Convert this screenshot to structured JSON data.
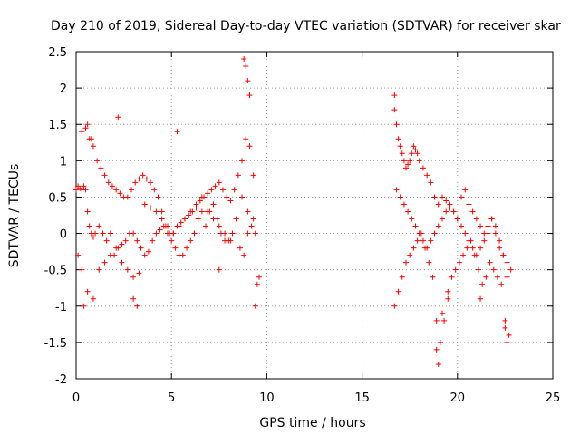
{
  "chart_data": {
    "type": "scatter",
    "title": "Day 210 of 2019, Sidereal Day-to-day VTEC variation (SDTVAR) for receiver skar",
    "xlabel": "GPS time / hours",
    "ylabel": "SDTVAR / TECUs",
    "xlim": [
      0,
      25
    ],
    "ylim": [
      -2,
      2.5
    ],
    "xticks": [
      0,
      5,
      10,
      15,
      20,
      25
    ],
    "xtick_labels": [
      "0",
      "5",
      "10",
      "15",
      "20",
      "25"
    ],
    "yticks": [
      -2,
      -1.5,
      -1,
      -0.5,
      0,
      0.5,
      1,
      1.5,
      2,
      2.5
    ],
    "ytick_labels": [
      "-2",
      "-1.5",
      "-1",
      "-0.5",
      "0",
      "0.5",
      "1",
      "1.5",
      "2",
      "2.5"
    ],
    "grid": true,
    "marker": "+",
    "color": "#ff0000",
    "series": [
      {
        "name": "SDTVAR",
        "x": [
          0.0,
          0.1,
          0.2,
          0.3,
          0.4,
          0.5,
          0.6,
          0.7,
          0.8,
          0.9,
          1.0,
          1.2,
          1.4,
          1.6,
          1.8,
          2.0,
          2.2,
          2.4,
          2.6,
          2.8,
          3.0,
          3.2,
          3.4,
          3.6,
          3.8,
          4.0,
          4.2,
          4.4,
          4.6,
          4.8,
          5.0,
          5.2,
          5.4,
          5.6,
          5.8,
          6.0,
          6.2,
          6.4,
          6.6,
          6.8,
          7.0,
          7.2,
          7.4,
          7.6,
          7.8,
          8.0,
          8.2,
          8.4,
          8.6,
          8.8,
          9.0,
          9.2,
          9.4,
          9.6,
          0.3,
          0.5,
          0.7,
          0.9,
          1.1,
          1.3,
          1.5,
          1.7,
          1.9,
          2.1,
          2.3,
          2.5,
          2.7,
          2.9,
          3.1,
          3.3,
          3.5,
          3.7,
          3.9,
          4.1,
          4.3,
          4.5,
          4.7,
          4.9,
          5.1,
          5.3,
          5.5,
          5.7,
          5.9,
          6.1,
          6.3,
          6.5,
          6.7,
          6.9,
          7.1,
          7.3,
          7.5,
          7.7,
          7.9,
          8.1,
          8.3,
          8.5,
          8.7,
          8.9,
          9.1,
          9.3,
          0.1,
          0.3,
          0.6,
          0.9,
          1.2,
          1.5,
          1.8,
          2.1,
          2.4,
          2.7,
          3.0,
          3.3,
          3.6,
          3.9,
          4.2,
          4.5,
          4.8,
          5.1,
          5.4,
          5.7,
          6.0,
          6.3,
          6.6,
          6.9,
          7.2,
          7.5,
          7.8,
          8.1,
          8.4,
          8.7,
          9.0,
          9.3,
          0.4,
          0.6,
          0.8,
          3.0,
          3.2,
          2.2,
          5.3,
          7.5,
          8.8,
          8.9,
          9.0,
          9.1,
          9.4,
          9.5,
          16.7,
          16.8,
          16.9,
          17.0,
          17.1,
          17.2,
          17.3,
          17.4,
          17.5,
          17.6,
          17.7,
          17.8,
          17.9,
          18.0,
          18.2,
          18.4,
          18.6,
          18.8,
          19.0,
          19.2,
          19.4,
          19.6,
          19.8,
          20.0,
          20.2,
          20.4,
          20.6,
          20.8,
          21.0,
          21.2,
          21.4,
          21.6,
          21.8,
          22.0,
          22.2,
          22.4,
          22.6,
          22.8,
          16.8,
          17.0,
          17.2,
          17.4,
          17.6,
          17.8,
          18.0,
          18.2,
          18.4,
          18.6,
          18.8,
          19.0,
          19.2,
          19.4,
          19.6,
          19.8,
          20.0,
          20.2,
          20.4,
          20.6,
          20.8,
          21.0,
          21.2,
          21.4,
          21.6,
          21.8,
          22.0,
          22.2,
          22.4,
          22.6,
          16.7,
          16.9,
          17.1,
          17.3,
          17.5,
          17.7,
          17.9,
          18.1,
          18.3,
          18.5,
          18.7,
          18.9,
          19.1,
          19.3,
          19.5,
          19.7,
          19.9,
          20.1,
          20.3,
          20.5,
          20.7,
          20.9,
          21.1,
          21.3,
          21.5,
          21.7,
          21.9,
          22.1,
          22.3,
          22.5,
          22.7,
          16.7,
          18.9,
          19.0,
          19.2,
          19.5,
          21.2,
          22.5,
          22.6
        ],
        "y": [
          0.6,
          0.65,
          0.62,
          0.6,
          0.65,
          0.6,
          0.3,
          0.1,
          0.0,
          -0.05,
          0.0,
          0.1,
          0.0,
          -0.1,
          0.0,
          -0.3,
          -0.2,
          -0.15,
          -0.1,
          0.0,
          0.0,
          -0.1,
          -0.2,
          -0.3,
          -0.25,
          -0.1,
          0.0,
          0.05,
          0.1,
          0.0,
          -0.1,
          -0.2,
          -0.3,
          -0.3,
          -0.2,
          -0.1,
          0.0,
          0.2,
          0.3,
          0.1,
          0.3,
          0.4,
          0.2,
          0.0,
          -0.1,
          -0.1,
          0.0,
          0.2,
          -0.2,
          -0.3,
          0.0,
          0.1,
          0.0,
          -0.6,
          1.4,
          1.45,
          1.3,
          1.2,
          1.0,
          0.9,
          0.8,
          0.7,
          0.65,
          0.6,
          0.55,
          0.5,
          0.5,
          0.6,
          0.7,
          0.75,
          0.8,
          0.75,
          0.7,
          0.6,
          0.5,
          0.3,
          0.1,
          0.0,
          0.0,
          0.1,
          0.15,
          0.2,
          0.25,
          0.3,
          0.35,
          0.45,
          0.5,
          0.55,
          0.6,
          0.65,
          0.7,
          0.6,
          0.5,
          0.45,
          0.6,
          0.8,
          1.0,
          1.3,
          1.2,
          0.8,
          -0.3,
          -0.5,
          -0.8,
          -0.9,
          -0.5,
          -0.4,
          -0.3,
          -0.2,
          -0.4,
          -0.5,
          -0.6,
          -0.55,
          0.4,
          0.35,
          0.3,
          0.2,
          0.1,
          0.0,
          0.1,
          0.2,
          0.3,
          0.4,
          0.5,
          0.3,
          0.2,
          0.1,
          0.0,
          -0.1,
          0.2,
          0.5,
          0.3,
          0.2,
          -1.0,
          1.5,
          1.3,
          -0.9,
          -1.0,
          1.6,
          1.4,
          -0.5,
          2.4,
          2.3,
          2.1,
          1.9,
          -1.0,
          -0.7,
          1.7,
          1.5,
          1.3,
          1.2,
          1.1,
          1.0,
          0.9,
          0.95,
          1.0,
          1.1,
          1.2,
          1.15,
          1.1,
          1.0,
          0.9,
          0.8,
          0.7,
          0.5,
          0.4,
          0.5,
          0.45,
          0.4,
          0.3,
          0.2,
          0.5,
          0.6,
          0.4,
          0.3,
          0.2,
          0.1,
          0.0,
          0.1,
          0.2,
          0.0,
          -0.2,
          -0.3,
          -0.4,
          -0.5,
          0.6,
          0.5,
          0.4,
          0.3,
          0.2,
          0.1,
          0.0,
          -0.1,
          -0.2,
          -0.1,
          0.0,
          0.1,
          0.2,
          0.3,
          0.35,
          0.3,
          0.2,
          0.1,
          0.0,
          -0.1,
          -0.2,
          -0.3,
          -0.2,
          -0.1,
          0.0,
          0.2,
          0.1,
          -0.1,
          -0.3,
          -0.6,
          -1.0,
          -0.8,
          -0.6,
          -0.4,
          -0.3,
          -0.2,
          -0.1,
          0.0,
          -0.2,
          -0.4,
          -0.6,
          -1.2,
          -1.5,
          -1.2,
          -0.9,
          -0.6,
          -0.5,
          -0.4,
          -0.3,
          -0.2,
          -0.1,
          -0.3,
          -0.5,
          -0.7,
          -0.6,
          -0.4,
          -0.5,
          -0.6,
          -0.7,
          -1.2,
          -1.4,
          1.9,
          -1.6,
          -1.8,
          -1.1,
          -0.8,
          -0.9,
          -1.3,
          -1.5
        ]
      }
    ]
  }
}
